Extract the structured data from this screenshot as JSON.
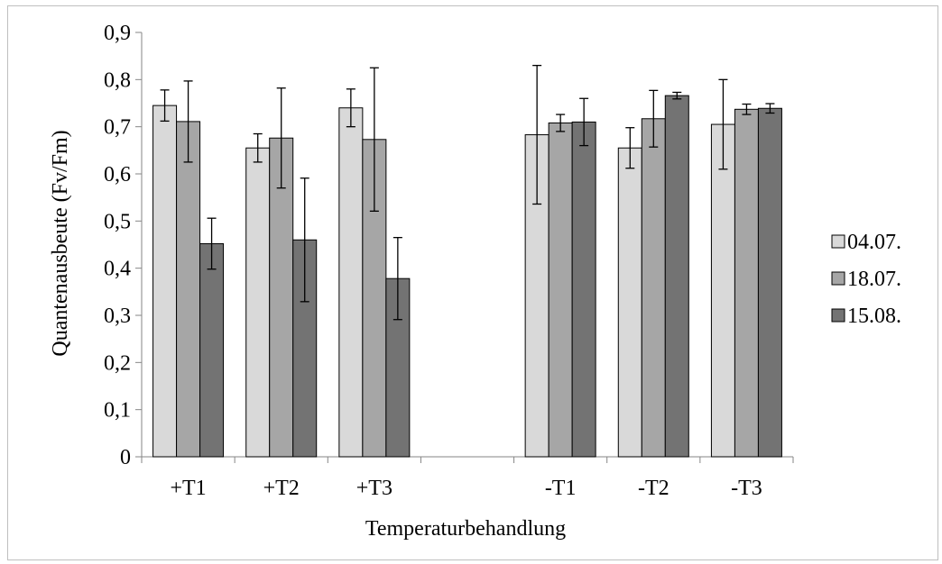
{
  "chart_data": {
    "type": "bar",
    "title": "",
    "xlabel": "Temperaturbehandlung",
    "ylabel": "Quantenausbeute (Fv/Fm)",
    "ylim": [
      0,
      0.9
    ],
    "ytick_step": 0.1,
    "ytick_labels": [
      "0",
      "0,1",
      "0,2",
      "0,3",
      "0,4",
      "0,5",
      "0,6",
      "0,7",
      "0,8",
      "0,9"
    ],
    "categories": [
      "+T1",
      "+T2",
      "+T3",
      "",
      "-T1",
      "-T2",
      "-T3"
    ],
    "series": [
      {
        "name": "04.07.",
        "color": "#d9d9d9",
        "values": [
          0.745,
          0.655,
          0.74,
          null,
          0.683,
          0.655,
          0.705
        ],
        "errors": [
          0.033,
          0.03,
          0.04,
          null,
          0.147,
          0.043,
          0.095
        ]
      },
      {
        "name": "18.07.",
        "color": "#a6a6a6",
        "values": [
          0.711,
          0.676,
          0.673,
          null,
          0.708,
          0.717,
          0.737
        ],
        "errors": [
          0.086,
          0.106,
          0.152,
          null,
          0.018,
          0.06,
          0.011
        ]
      },
      {
        "name": "15.08.",
        "color": "#737373",
        "values": [
          0.452,
          0.46,
          0.378,
          null,
          0.71,
          0.766,
          0.739
        ],
        "errors": [
          0.054,
          0.131,
          0.087,
          null,
          0.05,
          0.007,
          0.01
        ]
      }
    ],
    "legend_position": "right",
    "grid": false
  }
}
